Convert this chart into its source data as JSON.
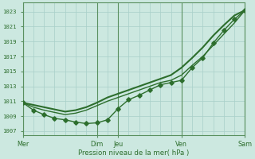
{
  "bg_color": "#cce8e0",
  "grid_color": "#a8cfc8",
  "line_color": "#2d6e2d",
  "dark_vline_color": "#5a9060",
  "title": "Pression niveau de la mer( hPa )",
  "yticks": [
    1007,
    1009,
    1011,
    1013,
    1015,
    1017,
    1019,
    1021,
    1023
  ],
  "ylim": [
    1006.5,
    1024.2
  ],
  "xlim": [
    0,
    21
  ],
  "xtick_positions": [
    0,
    7,
    9,
    15,
    21
  ],
  "xtick_labels": [
    "Mer",
    "Dim",
    "Jeu",
    "Ven",
    "Sam"
  ],
  "vline_positions": [
    0,
    7,
    9,
    15,
    21
  ],
  "n_vgrid": 21,
  "marker_line": {
    "x": [
      0,
      1,
      2,
      3,
      4,
      5,
      6,
      7,
      8,
      9,
      10,
      11,
      12,
      13,
      14,
      15,
      16,
      17,
      18,
      19,
      20,
      21
    ],
    "y": [
      1010.8,
      1009.8,
      1009.2,
      1008.7,
      1008.5,
      1008.2,
      1008.0,
      1008.1,
      1008.5,
      1010.0,
      1011.2,
      1011.8,
      1012.5,
      1013.2,
      1013.5,
      1013.8,
      1015.5,
      1016.8,
      1018.8,
      1020.5,
      1022.0,
      1023.2
    ],
    "linewidth": 1.0,
    "markersize": 2.8
  },
  "smooth_line_upper": {
    "x": [
      0,
      1,
      2,
      3,
      4,
      5,
      6,
      7,
      8,
      9,
      10,
      11,
      12,
      13,
      14,
      15,
      16,
      17,
      18,
      19,
      20,
      21
    ],
    "y": [
      1010.8,
      1010.5,
      1010.2,
      1009.9,
      1009.6,
      1009.8,
      1010.2,
      1010.8,
      1011.5,
      1012.0,
      1012.5,
      1013.0,
      1013.5,
      1014.0,
      1014.5,
      1015.5,
      1016.8,
      1018.2,
      1019.8,
      1021.2,
      1022.5,
      1023.2
    ],
    "linewidth": 1.5
  },
  "smooth_line_lower": {
    "x": [
      0,
      1,
      2,
      3,
      4,
      5,
      6,
      7,
      8,
      9,
      10,
      11,
      12,
      13,
      14,
      15,
      16,
      17,
      18,
      19,
      20,
      21
    ],
    "y": [
      1010.8,
      1010.2,
      1009.8,
      1009.5,
      1009.2,
      1009.4,
      1009.8,
      1010.4,
      1011.0,
      1011.5,
      1012.0,
      1012.5,
      1013.0,
      1013.5,
      1013.8,
      1014.5,
      1015.8,
      1017.0,
      1018.5,
      1020.0,
      1021.5,
      1023.2
    ],
    "linewidth": 1.0
  }
}
